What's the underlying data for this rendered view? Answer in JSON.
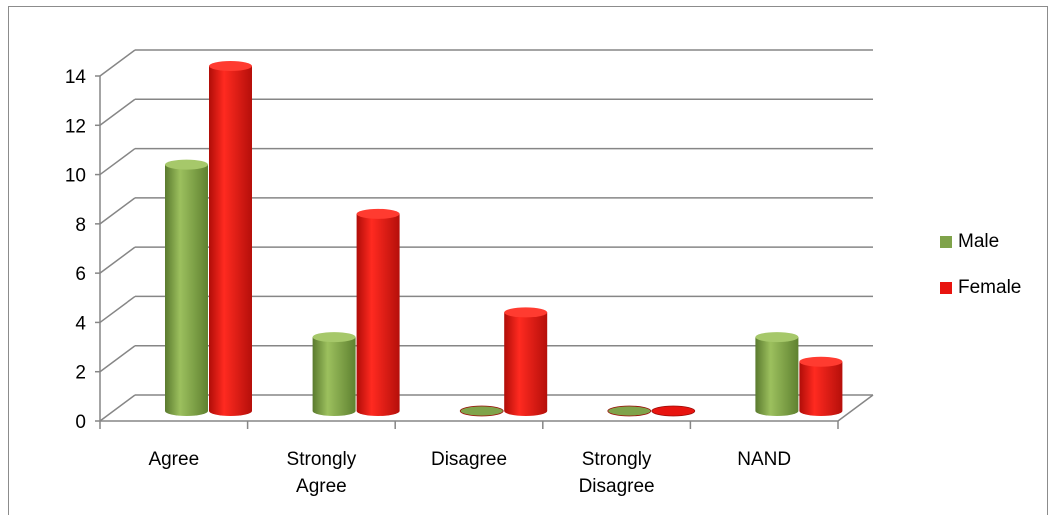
{
  "chart_data": {
    "type": "bar",
    "categories": [
      [
        "Agree"
      ],
      [
        "Strongly",
        "Agree"
      ],
      [
        "Disagree"
      ],
      [
        "Strongly",
        "Disagree"
      ],
      [
        "NAND"
      ]
    ],
    "series": [
      {
        "name": "Male",
        "values": [
          10,
          3,
          0,
          0,
          3
        ],
        "color": "#7fa34a"
      },
      {
        "name": "Female",
        "values": [
          14,
          8,
          4,
          0,
          2
        ],
        "color": "#e8140f"
      }
    ],
    "yticks": [
      "0",
      "2",
      "4",
      "6",
      "8",
      "10",
      "12",
      "14"
    ],
    "ylim": [
      0,
      14
    ],
    "grid": true,
    "legend": "right",
    "style": "3d-cylinder"
  }
}
